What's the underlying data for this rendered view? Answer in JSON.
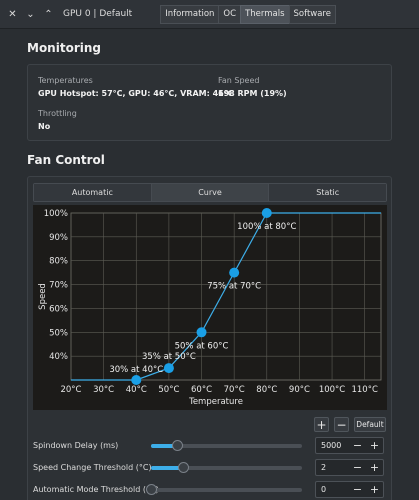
{
  "titlebar": {
    "gpu_label": "GPU 0 | Default",
    "tabs": [
      "Information",
      "OC",
      "Thermals",
      "Software"
    ],
    "active_tab": "Thermals"
  },
  "monitoring": {
    "title": "Monitoring",
    "temperatures_label": "Temperatures",
    "temperatures_value": "GPU Hotspot: 57°C, GPU: 46°C, VRAM: 46°C",
    "fan_speed_label": "Fan Speed",
    "fan_speed_value": "198 RPM (19%)",
    "throttling_label": "Throttling",
    "throttling_value": "No"
  },
  "fan_control": {
    "title": "Fan Control",
    "modes": [
      "Automatic",
      "Curve",
      "Static"
    ],
    "active_mode": "Curve",
    "add_label": "+",
    "remove_label": "−",
    "default_label": "Default",
    "settings": [
      {
        "label": "Spindown Delay (ms)",
        "slider_fraction": 0.17,
        "value": "5000"
      },
      {
        "label": "Speed Change Threshold (°C)",
        "slider_fraction": 0.21,
        "value": "2"
      },
      {
        "label": "Automatic Mode Threshold (°C)",
        "slider_fraction": 0.0,
        "value": "0"
      }
    ],
    "minus_label": "−",
    "plus_label": "+"
  },
  "chart_data": {
    "type": "line",
    "xlabel": "Temperature",
    "ylabel": "Speed",
    "x_ticks": [
      "20°C",
      "30°C",
      "40°C",
      "50°C",
      "60°C",
      "70°C",
      "80°C",
      "90°C",
      "100°C",
      "110°C"
    ],
    "y_ticks": [
      "100%",
      "90%",
      "80%",
      "70%",
      "60%",
      "50%",
      "40%"
    ],
    "xlim": [
      20,
      115
    ],
    "ylim": [
      30,
      100
    ],
    "grid": true,
    "line_color": "#3daee9",
    "point_color": "#1a9fe6",
    "points": [
      {
        "x": 40,
        "y": 30,
        "label": "30% at 40°C"
      },
      {
        "x": 50,
        "y": 35,
        "label": "35% at 50°C"
      },
      {
        "x": 60,
        "y": 50,
        "label": "50% at 60°C"
      },
      {
        "x": 70,
        "y": 75,
        "label": "75% at 70°C"
      },
      {
        "x": 80,
        "y": 100,
        "label": "100% at 80°C"
      }
    ]
  }
}
